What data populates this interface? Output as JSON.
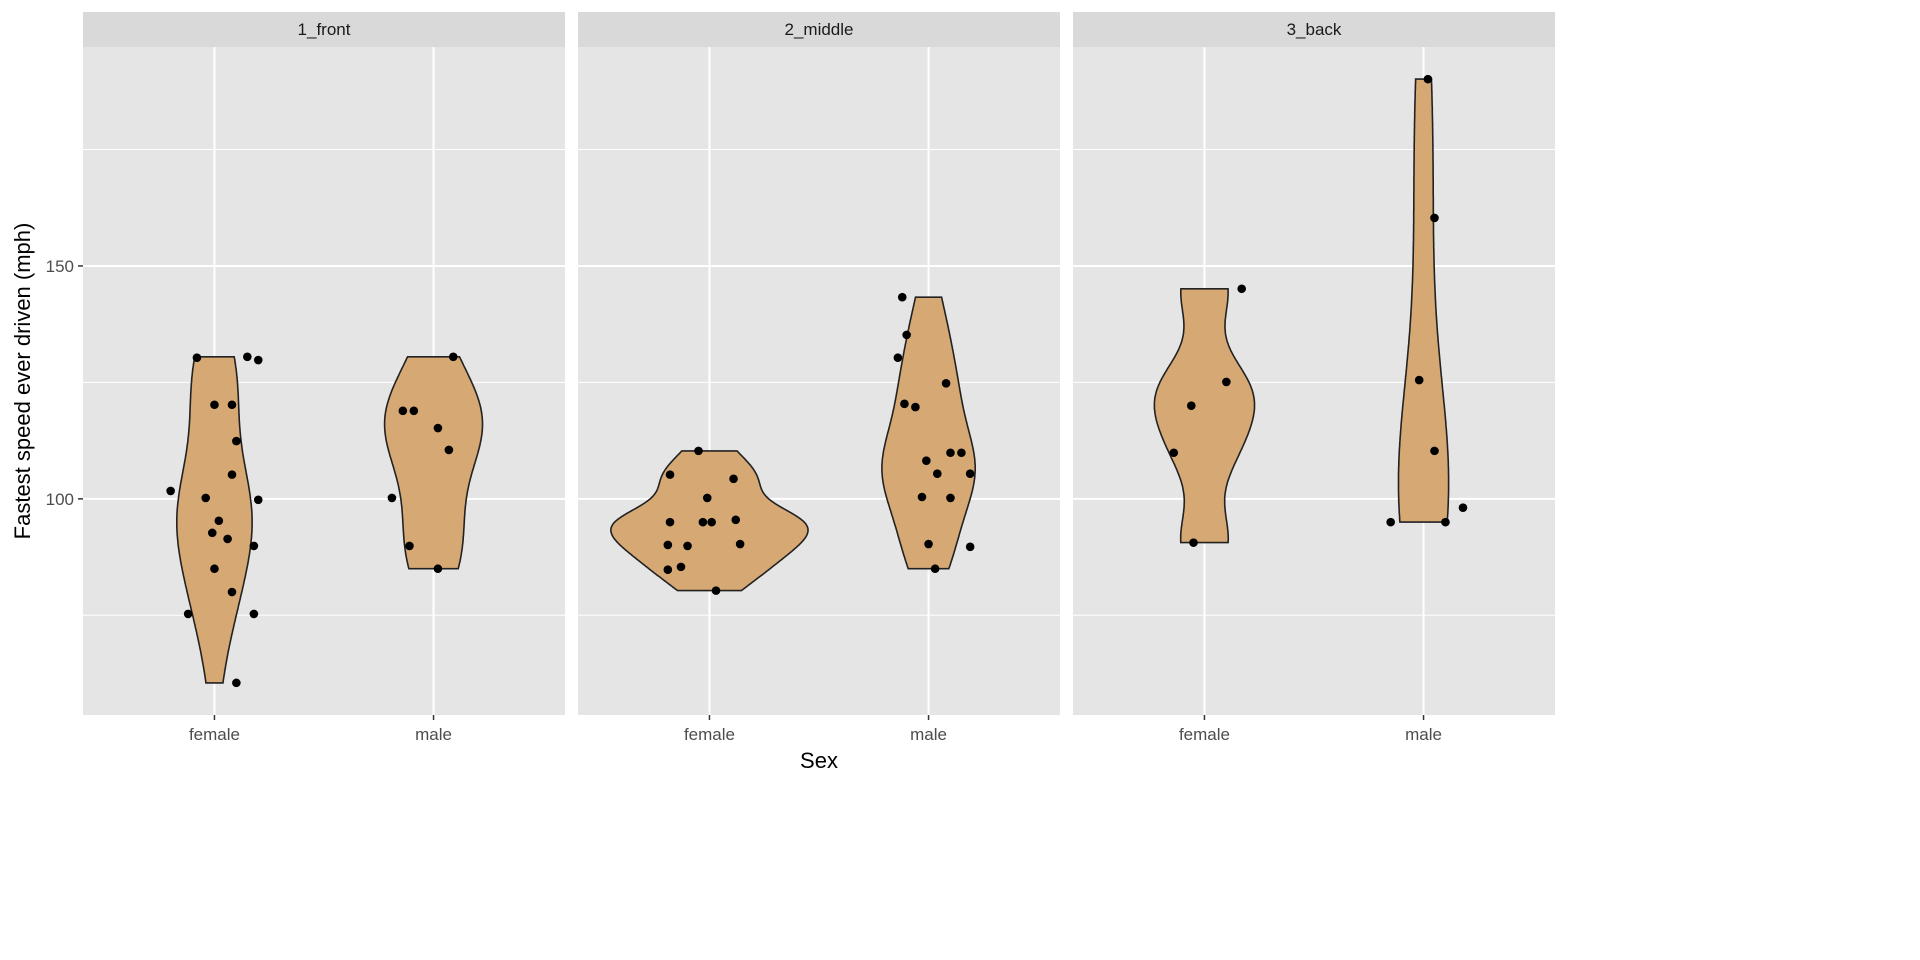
{
  "chart_data": {
    "type": "violin",
    "xlabel": "Sex",
    "ylabel": "Fastest speed ever driven (mph)",
    "ylim": [
      53.6,
      197
    ],
    "y_major_ticks": [
      100,
      150
    ],
    "y_minor_ticks": [
      75,
      125,
      175
    ],
    "categories": [
      "female",
      "male"
    ],
    "fill_color": "#D5A874",
    "grid": true,
    "facets": [
      {
        "label": "1_front",
        "groups": [
          {
            "category": "female",
            "values": [
              130.3,
              130.5,
              129.8,
              120.2,
              120.2,
              112.4,
              105.2,
              101.7,
              100.2,
              99.8,
              95.3,
              92.7,
              91.4,
              89.9,
              85,
              80,
              75.3,
              75.3,
              60.5
            ],
            "jitter": [
              -0.08,
              0.15,
              0.2,
              0,
              0.08,
              0.1,
              0.08,
              -0.2,
              -0.04,
              0.2,
              0.02,
              -0.01,
              0.06,
              0.18,
              0,
              0.08,
              -0.12,
              0.18,
              0.1
            ]
          },
          {
            "category": "male",
            "values": [
              130.5,
              118.9,
              118.9,
              115.2,
              110.5,
              100.2,
              89.9,
              85
            ],
            "jitter": [
              0.09,
              -0.14,
              -0.09,
              0.02,
              0.07,
              -0.19,
              -0.11,
              0.02
            ]
          }
        ]
      },
      {
        "label": "2_middle",
        "groups": [
          {
            "category": "female",
            "values": [
              105.2,
              110.3,
              104.3,
              100.2,
              95,
              95,
              95,
              95.5,
              90.1,
              89.9,
              90.3,
              84.8,
              85.4,
              80.3
            ],
            "jitter": [
              -0.18,
              -0.05,
              0.11,
              -0.01,
              -0.18,
              -0.03,
              0.01,
              0.12,
              -0.19,
              -0.1,
              0.14,
              -0.19,
              -0.13,
              0.03
            ]
          },
          {
            "category": "male",
            "values": [
              143.3,
              135.2,
              130.3,
              120.4,
              119.7,
              124.8,
              108.2,
              105.4,
              105.4,
              109.9,
              109.9,
              100.4,
              100.2,
              90.3,
              89.7,
              85
            ],
            "jitter": [
              -0.12,
              -0.1,
              -0.14,
              -0.11,
              -0.06,
              0.08,
              -0.01,
              0.04,
              0.19,
              0.1,
              0.15,
              -0.03,
              0.1,
              0,
              0.19,
              0.03
            ]
          }
        ]
      },
      {
        "label": "3_back",
        "groups": [
          {
            "category": "female",
            "values": [
              145.1,
              125.1,
              120,
              109.9,
              90.6
            ],
            "jitter": [
              0.17,
              0.1,
              -0.06,
              -0.14,
              -0.05
            ]
          },
          {
            "category": "male",
            "values": [
              190.1,
              160.3,
              125.5,
              110.3,
              95,
              95,
              98.1
            ],
            "jitter": [
              0.02,
              0.05,
              -0.02,
              0.05,
              -0.15,
              0.1,
              0.18
            ]
          }
        ]
      }
    ]
  }
}
